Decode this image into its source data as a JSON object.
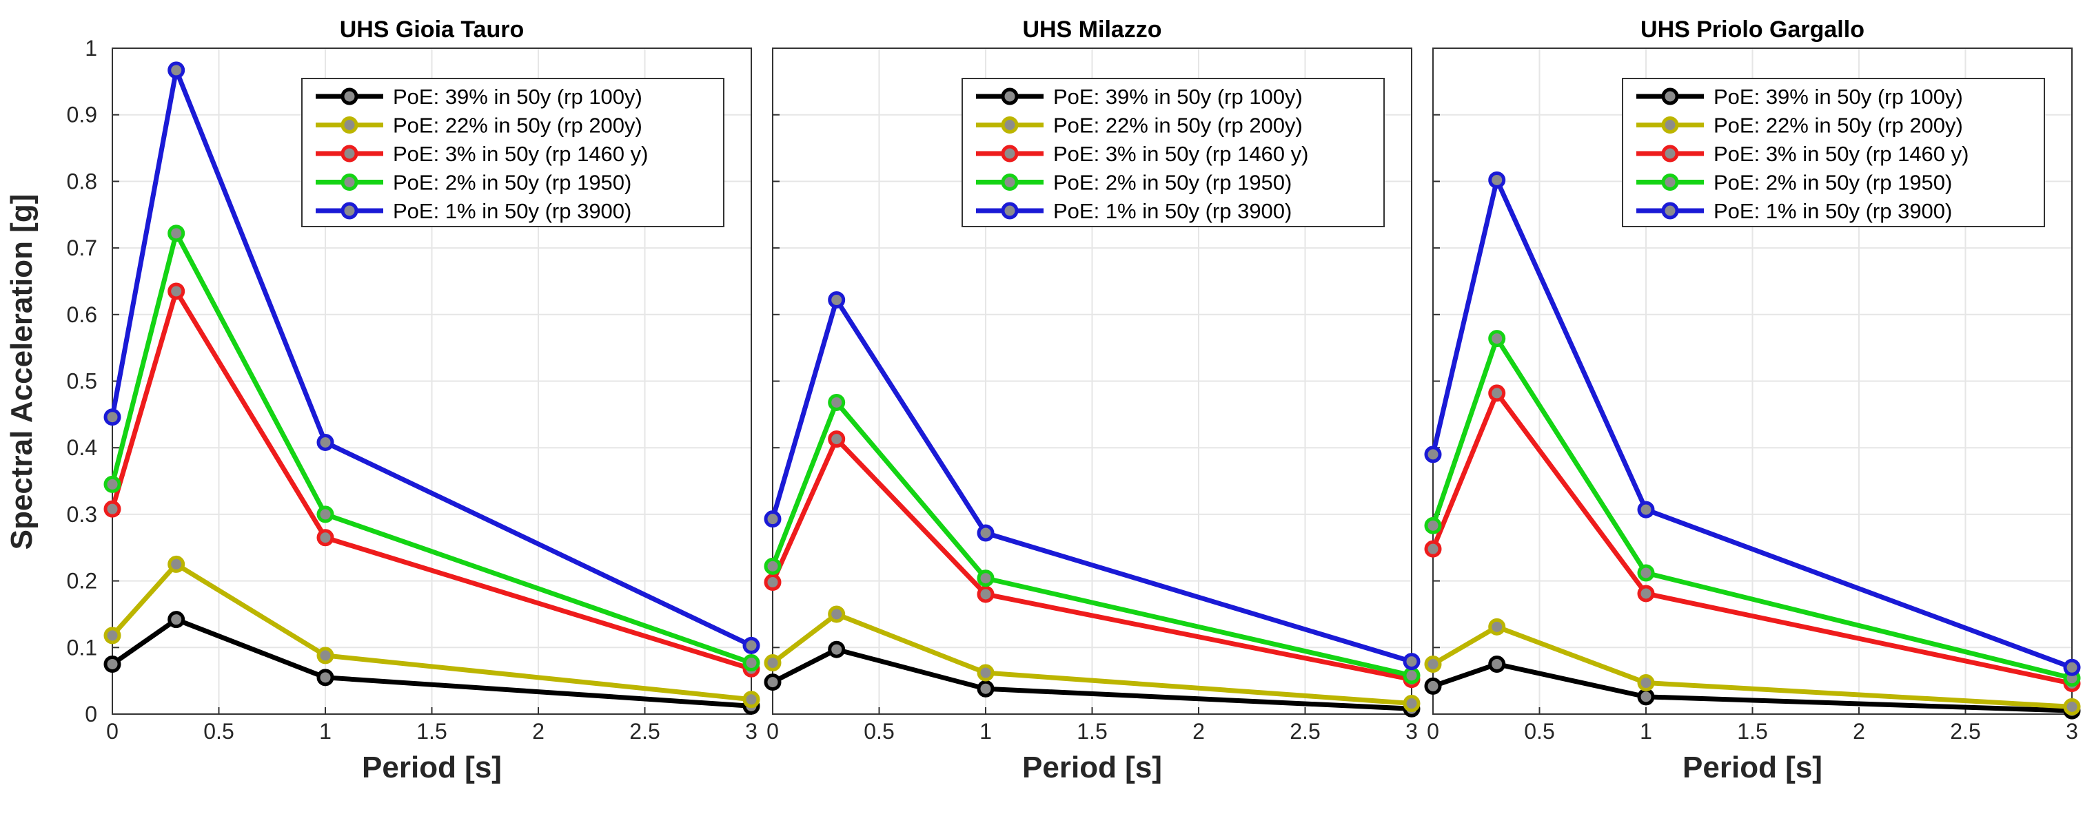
{
  "colors": {
    "series": [
      "#000000",
      "#bcb500",
      "#ee1c1c",
      "#14d414",
      "#1a1ad6"
    ],
    "marker_fill": "#8c8c8c",
    "grid": "#e6e6e6",
    "axis": "#333333",
    "background": "#ffffff"
  },
  "chart_data": [
    {
      "type": "line",
      "title": "UHS  Gioia Tauro",
      "xlabel": "Period  [s]",
      "ylabel": "Spectral Acceleration [g]",
      "xlim": [
        0,
        3
      ],
      "ylim": [
        0,
        1
      ],
      "grid": true,
      "xticks": [
        "0",
        "0.5",
        "1",
        "1.5",
        "2",
        "2.5",
        "3"
      ],
      "yticks": [
        "0",
        "0.1",
        "0.2",
        "0.3",
        "0.4",
        "0.5",
        "0.6",
        "0.7",
        "0.8",
        "0.9",
        "1"
      ],
      "legend_position": "top-right",
      "x": [
        0,
        0.3,
        1,
        3
      ],
      "series": [
        {
          "name": "PoE: 39% in 50y (rp 100y)",
          "values": [
            0.075,
            0.142,
            0.055,
            0.012
          ]
        },
        {
          "name": "PoE: 22% in 50y (rp 200y)",
          "values": [
            0.118,
            0.225,
            0.088,
            0.022
          ]
        },
        {
          "name": "PoE: 3% in 50y (rp 1460 y)",
          "values": [
            0.308,
            0.635,
            0.265,
            0.068
          ]
        },
        {
          "name": "PoE: 2% in 50y (rp 1950)",
          "values": [
            0.345,
            0.722,
            0.3,
            0.077
          ]
        },
        {
          "name": "PoE: 1% in 50y (rp 3900)",
          "values": [
            0.446,
            0.967,
            0.408,
            0.103
          ]
        }
      ]
    },
    {
      "type": "line",
      "title": "UHS  Milazzo",
      "xlabel": "Period  [s]",
      "ylabel": "",
      "xlim": [
        0,
        3
      ],
      "ylim": [
        0,
        1
      ],
      "grid": true,
      "xticks": [
        "0",
        "0.5",
        "1",
        "1.5",
        "2",
        "2.5",
        "3"
      ],
      "yticks": [],
      "legend_position": "top-right",
      "x": [
        0,
        0.3,
        1,
        3
      ],
      "series": [
        {
          "name": "PoE: 39% in 50y (rp 100y)",
          "values": [
            0.048,
            0.097,
            0.038,
            0.008
          ]
        },
        {
          "name": "PoE: 22% in 50y (rp 200y)",
          "values": [
            0.077,
            0.15,
            0.062,
            0.016
          ]
        },
        {
          "name": "PoE: 3% in 50y (rp 1460 y)",
          "values": [
            0.198,
            0.413,
            0.18,
            0.052
          ]
        },
        {
          "name": "PoE: 2% in 50y (rp 1950)",
          "values": [
            0.222,
            0.468,
            0.204,
            0.058
          ]
        },
        {
          "name": "PoE: 1% in 50y (rp 3900)",
          "values": [
            0.293,
            0.622,
            0.272,
            0.079
          ]
        }
      ]
    },
    {
      "type": "line",
      "title": "UHS  Priolo Gargallo",
      "xlabel": "Period  [s]",
      "ylabel": "",
      "xlim": [
        0,
        3
      ],
      "ylim": [
        0,
        1
      ],
      "grid": true,
      "xticks": [
        "0",
        "0.5",
        "1",
        "1.5",
        "2",
        "2.5",
        "3"
      ],
      "yticks": [],
      "legend_position": "top-right",
      "x": [
        0,
        0.3,
        1,
        3
      ],
      "series": [
        {
          "name": "PoE: 39% in 50y (rp 100y)",
          "values": [
            0.042,
            0.075,
            0.026,
            0.005
          ]
        },
        {
          "name": "PoE: 22% in 50y (rp 200y)",
          "values": [
            0.075,
            0.131,
            0.047,
            0.011
          ]
        },
        {
          "name": "PoE: 3% in 50y (rp 1460 y)",
          "values": [
            0.248,
            0.482,
            0.181,
            0.046
          ]
        },
        {
          "name": "PoE: 2% in 50y (rp 1950)",
          "values": [
            0.283,
            0.564,
            0.212,
            0.054
          ]
        },
        {
          "name": "PoE: 1% in 50y (rp 3900)",
          "values": [
            0.39,
            0.802,
            0.307,
            0.07
          ]
        }
      ]
    }
  ]
}
